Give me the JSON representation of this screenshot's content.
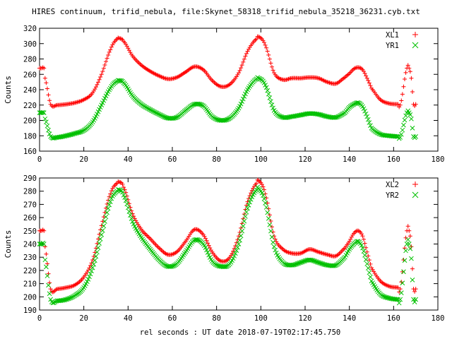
{
  "title": "HIRES continuum, trifid_nebula, file:Skynet_58318_trifid_nebula_35218_36231.cyb.txt",
  "xlabel": "rel seconds : UT date 2018-07-19T02:17:45.750",
  "colors": {
    "series1": "#ff0000",
    "series2": "#00c000",
    "axis": "#000000"
  },
  "chart_data": [
    {
      "type": "scatter",
      "ylabel": "Counts",
      "xlim": [
        0,
        180
      ],
      "ylim": [
        160,
        320
      ],
      "xticks": [
        0,
        20,
        40,
        60,
        80,
        100,
        120,
        140,
        160,
        180
      ],
      "yticks": [
        160,
        180,
        200,
        220,
        240,
        260,
        280,
        300,
        320
      ],
      "legend_position": "top-right",
      "series": [
        {
          "name": "XL1",
          "marker": "plus",
          "x": [
            0,
            1,
            2,
            2.5,
            5,
            8,
            12,
            16,
            20,
            24,
            28,
            32,
            35,
            36,
            38,
            42,
            46,
            50,
            54,
            58,
            62,
            66,
            70,
            74,
            78,
            82,
            86,
            90,
            94,
            98,
            99,
            102,
            106,
            110,
            114,
            118,
            122,
            126,
            130,
            134,
            138,
            140,
            142,
            144,
            146,
            148,
            150,
            154,
            158,
            162,
            163,
            166,
            167,
            168,
            169,
            170
          ],
          "values": [
            268,
            268,
            268,
            255,
            221,
            220,
            221,
            223,
            227,
            236,
            260,
            292,
            306,
            307,
            303,
            284,
            272,
            264,
            258,
            254,
            256,
            263,
            270,
            266,
            252,
            244,
            247,
            262,
            290,
            306,
            309,
            298,
            262,
            253,
            255,
            255,
            256,
            255,
            250,
            248,
            256,
            261,
            267,
            269,
            266,
            255,
            242,
            227,
            222,
            221,
            220,
            268,
            268,
            255,
            221,
            221
          ]
        },
        {
          "name": "YR1",
          "marker": "cross",
          "x": [
            0,
            1,
            2,
            2.5,
            5,
            8,
            12,
            16,
            20,
            24,
            28,
            32,
            35,
            36,
            38,
            42,
            46,
            50,
            54,
            58,
            62,
            66,
            70,
            74,
            78,
            82,
            86,
            90,
            94,
            98,
            99,
            102,
            106,
            110,
            114,
            118,
            122,
            126,
            130,
            134,
            138,
            140,
            142,
            144,
            146,
            148,
            150,
            154,
            158,
            162,
            163,
            166,
            167,
            168,
            169,
            170
          ],
          "values": [
            210,
            210,
            210,
            202,
            179,
            178,
            180,
            183,
            187,
            198,
            220,
            242,
            251,
            252,
            249,
            232,
            221,
            214,
            208,
            203,
            204,
            213,
            221,
            219,
            205,
            200,
            203,
            216,
            240,
            254,
            255,
            246,
            213,
            204,
            205,
            207,
            209,
            208,
            205,
            204,
            210,
            217,
            221,
            223,
            218,
            205,
            190,
            182,
            180,
            179,
            178,
            210,
            210,
            202,
            179,
            179
          ]
        }
      ]
    },
    {
      "type": "scatter",
      "ylabel": "Counts",
      "xlim": [
        0,
        180
      ],
      "ylim": [
        190,
        290
      ],
      "xticks": [
        0,
        20,
        40,
        60,
        80,
        100,
        120,
        140,
        160,
        180
      ],
      "yticks": [
        190,
        200,
        210,
        220,
        230,
        240,
        250,
        260,
        270,
        280,
        290
      ],
      "legend_position": "top-right",
      "series": [
        {
          "name": "XL2",
          "marker": "plus",
          "x": [
            0,
            1,
            2,
            2.5,
            5,
            8,
            12,
            16,
            20,
            24,
            28,
            32,
            35,
            36,
            38,
            42,
            46,
            50,
            54,
            58,
            62,
            66,
            70,
            74,
            78,
            82,
            86,
            90,
            94,
            98,
            99,
            102,
            106,
            110,
            114,
            118,
            122,
            126,
            130,
            134,
            138,
            140,
            142,
            144,
            146,
            148,
            150,
            154,
            158,
            162,
            163,
            166,
            167,
            168,
            169,
            170
          ],
          "values": [
            250,
            250,
            250,
            238,
            206,
            206,
            207,
            209,
            215,
            228,
            254,
            278,
            286,
            287,
            283,
            263,
            251,
            244,
            237,
            232,
            234,
            242,
            251,
            247,
            234,
            227,
            230,
            246,
            272,
            286,
            288,
            278,
            246,
            236,
            233,
            233,
            236,
            234,
            232,
            231,
            237,
            242,
            248,
            250,
            246,
            234,
            222,
            212,
            208,
            207,
            206,
            250,
            250,
            238,
            206,
            206
          ]
        },
        {
          "name": "YR2",
          "marker": "cross",
          "x": [
            0,
            1,
            2,
            2.5,
            5,
            8,
            12,
            16,
            20,
            24,
            28,
            32,
            35,
            36,
            38,
            42,
            46,
            50,
            54,
            58,
            62,
            66,
            70,
            74,
            78,
            82,
            86,
            90,
            94,
            98,
            99,
            102,
            106,
            110,
            114,
            118,
            122,
            126,
            130,
            134,
            138,
            140,
            142,
            144,
            146,
            148,
            150,
            154,
            158,
            162,
            163,
            166,
            167,
            168,
            169,
            170
          ],
          "values": [
            240,
            240,
            240,
            228,
            198,
            197,
            198,
            201,
            207,
            222,
            247,
            272,
            280,
            281,
            277,
            257,
            245,
            236,
            228,
            223,
            225,
            234,
            243,
            240,
            227,
            223,
            225,
            240,
            267,
            281,
            282,
            271,
            238,
            226,
            224,
            226,
            228,
            226,
            224,
            224,
            230,
            236,
            240,
            242,
            237,
            225,
            212,
            202,
            199,
            198,
            198,
            240,
            240,
            229,
            198,
            198
          ]
        }
      ]
    }
  ]
}
